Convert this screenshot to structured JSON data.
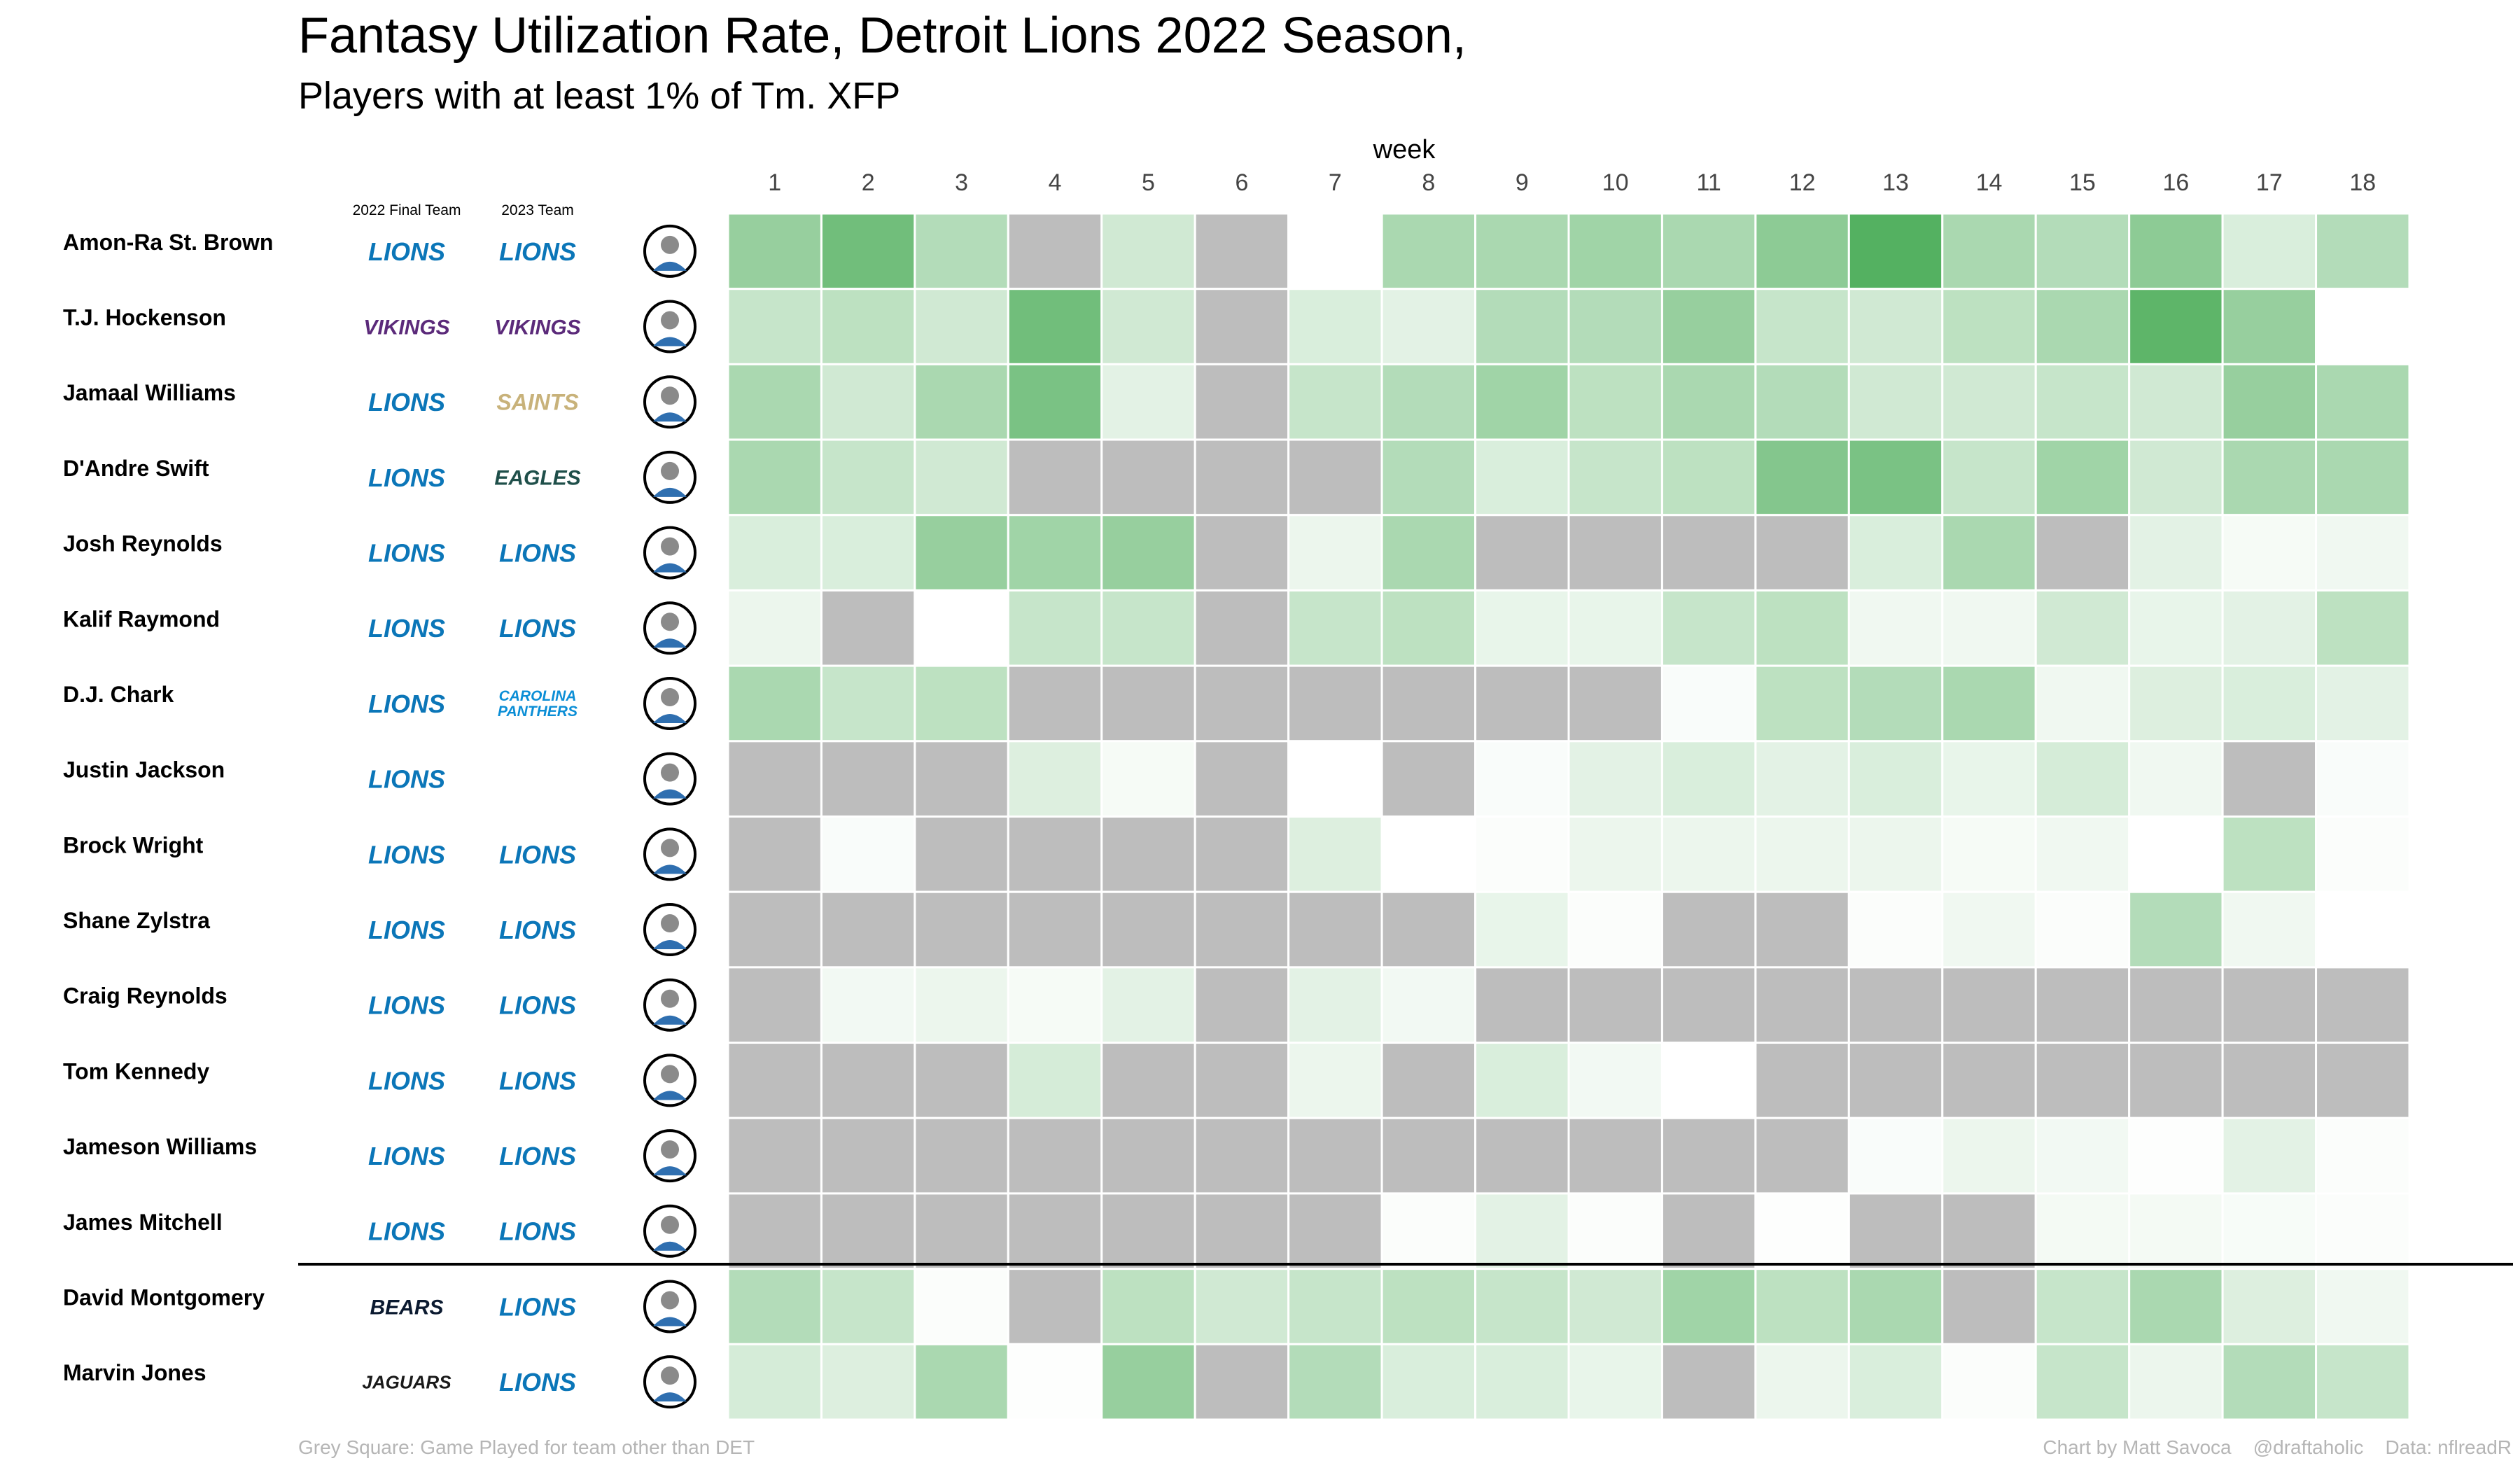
{
  "chart_data": {
    "type": "heatmap",
    "title": "Fantasy Utilization Rate, Detroit Lions 2022 Season,",
    "subtitle": "Players with at least 1% of Tm. XFP",
    "xlabel": "week",
    "weeks": [
      1,
      2,
      3,
      4,
      5,
      6,
      7,
      8,
      9,
      10,
      11,
      12,
      13,
      14,
      15,
      16,
      17,
      18
    ],
    "column_headers": {
      "final_team": "2022 Final Team",
      "team_2023": "2023 Team"
    },
    "note_grey": "Grey Square: Game Played for team other than DET",
    "credit": "Chart by Matt Savoca    @draftaholic    Data: nflreadR",
    "colors": {
      "low": "#ffffff",
      "high": "#41a84f",
      "grey": "#bdbdbd",
      "grid": "#ffffff"
    },
    "encoding": {
      "g": "grey square",
      "null": "no game"
    },
    "players": [
      {
        "name": "Amon-Ra St. Brown",
        "final_team": "LIONS",
        "team_2023": "LIONS",
        "values": [
          0.55,
          0.75,
          0.4,
          "g",
          0.25,
          "g",
          null,
          0.45,
          0.45,
          0.5,
          0.45,
          0.6,
          0.9,
          0.45,
          0.4,
          0.6,
          0.2,
          0.4
        ]
      },
      {
        "name": "T.J. Hockenson",
        "final_team": "VIKINGS",
        "team_2023": "VIKINGS",
        "values": [
          0.3,
          0.35,
          0.25,
          0.75,
          0.25,
          "g",
          0.2,
          0.15,
          0.4,
          0.4,
          0.55,
          0.3,
          0.25,
          0.35,
          0.45,
          0.85,
          0.55,
          0
        ]
      },
      {
        "name": "Jamaal Williams",
        "final_team": "LIONS",
        "team_2023": "SAINTS",
        "values": [
          0.45,
          0.25,
          0.45,
          0.7,
          0.15,
          "g",
          0.3,
          0.4,
          0.5,
          0.35,
          0.45,
          0.4,
          0.25,
          0.25,
          0.3,
          0.25,
          0.55,
          0.45
        ]
      },
      {
        "name": "D'Andre Swift",
        "final_team": "LIONS",
        "team_2023": "EAGLES",
        "values": [
          0.45,
          0.3,
          0.25,
          "g",
          "g",
          "g",
          "g",
          0.4,
          0.2,
          0.3,
          0.35,
          0.65,
          0.7,
          0.3,
          0.5,
          0.25,
          0.45,
          0.45
        ]
      },
      {
        "name": "Josh Reynolds",
        "final_team": "LIONS",
        "team_2023": "LIONS",
        "values": [
          0.2,
          0.2,
          0.55,
          0.5,
          0.55,
          "g",
          0.1,
          0.45,
          "g",
          "g",
          "g",
          "g",
          0.2,
          0.45,
          "g",
          0.15,
          0.05,
          0.08
        ]
      },
      {
        "name": "Kalif Raymond",
        "final_team": "LIONS",
        "team_2023": "LIONS",
        "values": [
          0.1,
          "g",
          0,
          0.3,
          0.3,
          "g",
          0.3,
          0.35,
          0.12,
          0.12,
          0.3,
          0.35,
          0.08,
          0.08,
          0.25,
          0.12,
          0.15,
          0.35
        ]
      },
      {
        "name": "D.J. Chark",
        "final_team": "LIONS",
        "team_2023": "PANTHERS",
        "values": [
          0.45,
          0.3,
          0.35,
          "g",
          "g",
          "g",
          "g",
          "g",
          "g",
          "g",
          0.03,
          0.35,
          0.4,
          0.45,
          0.08,
          0.18,
          0.2,
          0.15
        ]
      },
      {
        "name": "Justin Jackson",
        "final_team": "LIONS",
        "team_2023": "",
        "values": [
          "g",
          "g",
          "g",
          0.18,
          0.05,
          "g",
          null,
          "g",
          0.03,
          0.15,
          0.2,
          0.15,
          0.2,
          0.12,
          0.22,
          0.08,
          "g",
          0.03
        ]
      },
      {
        "name": "Brock Wright",
        "final_team": "LIONS",
        "team_2023": "LIONS",
        "values": [
          "g",
          0.03,
          "g",
          "g",
          "g",
          "g",
          0.18,
          0,
          0.02,
          0.1,
          0.1,
          0.1,
          0.1,
          0.05,
          0.08,
          0,
          0.35,
          0.02
        ]
      },
      {
        "name": "Shane Zylstra",
        "final_team": "LIONS",
        "team_2023": "LIONS",
        "values": [
          "g",
          "g",
          "g",
          "g",
          "g",
          "g",
          "g",
          "g",
          0.12,
          0.02,
          "g",
          "g",
          0.02,
          0.08,
          0.02,
          0.4,
          0.08,
          0
        ]
      },
      {
        "name": "Craig Reynolds",
        "final_team": "LIONS",
        "team_2023": "LIONS",
        "values": [
          "g",
          0.07,
          0.1,
          0.05,
          0.15,
          "g",
          0.15,
          0.07,
          "g",
          "g",
          "g",
          "g",
          "g",
          "g",
          "g",
          "g",
          "g",
          "g"
        ]
      },
      {
        "name": "Tom Kennedy",
        "final_team": "LIONS",
        "team_2023": "LIONS",
        "values": [
          "g",
          "g",
          "g",
          0.22,
          "g",
          "g",
          0.1,
          "g",
          0.2,
          0.07,
          0,
          "g",
          "g",
          "g",
          "g",
          "g",
          "g",
          "g"
        ]
      },
      {
        "name": "Jameson Williams",
        "final_team": "LIONS",
        "team_2023": "LIONS",
        "values": [
          "g",
          "g",
          "g",
          "g",
          "g",
          "g",
          "g",
          "g",
          "g",
          "g",
          "g",
          "g",
          0.03,
          0.1,
          0.07,
          0.01,
          0.15,
          0.02
        ]
      },
      {
        "name": "James Mitchell",
        "final_team": "LIONS",
        "team_2023": "LIONS",
        "values": [
          "g",
          "g",
          "g",
          "g",
          "g",
          "g",
          "g",
          0.02,
          0.15,
          0.02,
          "g",
          0.01,
          "g",
          "g",
          0.06,
          0.06,
          0.04,
          0.02
        ]
      },
      {
        "name": "David Montgomery",
        "final_team": "BEARS",
        "team_2023": "LIONS",
        "values": [
          0.4,
          0.3,
          0.02,
          "g",
          0.35,
          0.25,
          0.3,
          0.35,
          0.3,
          0.25,
          0.5,
          0.35,
          0.45,
          "g",
          0.3,
          0.45,
          0.18,
          0.08
        ]
      },
      {
        "name": "Marvin Jones",
        "final_team": "JAGUARS",
        "team_2023": "LIONS",
        "values": [
          0.22,
          0.18,
          0.45,
          0.01,
          0.55,
          "g",
          0.4,
          0.2,
          0.2,
          0.12,
          "g",
          0.1,
          0.2,
          0.02,
          0.3,
          0.1,
          0.4,
          0.3
        ]
      }
    ]
  }
}
